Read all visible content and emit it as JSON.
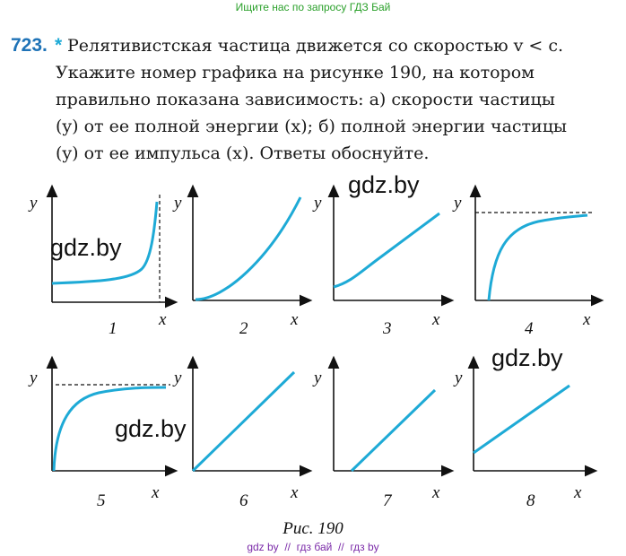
{
  "header": {
    "text": "Ищите нас по запросу ГДЗ Бай"
  },
  "problem": {
    "number": "723.",
    "mark": "*",
    "lines": [
      "Релятивистская частица движется со скоростью v < c.",
      "Укажите номер графика на рисунке 190, на котором",
      "правильно показана зависимость: а) скорости частицы",
      "(y) от ее полной энергии (x); б) полной энергии частицы",
      "(y) от ее импульса (x). Ответы обоснуйте."
    ]
  },
  "figure": {
    "graphs": [
      {
        "y_label": "y",
        "x_label": "x",
        "number": "1"
      },
      {
        "y_label": "y",
        "x_label": "x",
        "number": "2"
      },
      {
        "y_label": "y",
        "x_label": "x",
        "number": "3"
      },
      {
        "y_label": "y",
        "x_label": "x",
        "number": "4"
      },
      {
        "y_label": "y",
        "x_label": "x",
        "number": "5"
      },
      {
        "y_label": "y",
        "x_label": "x",
        "number": "6"
      },
      {
        "y_label": "y",
        "x_label": "x",
        "number": "7"
      },
      {
        "y_label": "y",
        "x_label": "x",
        "number": "8"
      }
    ],
    "caption": "Рис. 190"
  },
  "watermarks": [
    "gdz.by",
    "gdz.by",
    "gdz.by",
    "gdz.by"
  ],
  "footer": {
    "text": "gdz by  //  гдз бай  //  гдз by"
  }
}
